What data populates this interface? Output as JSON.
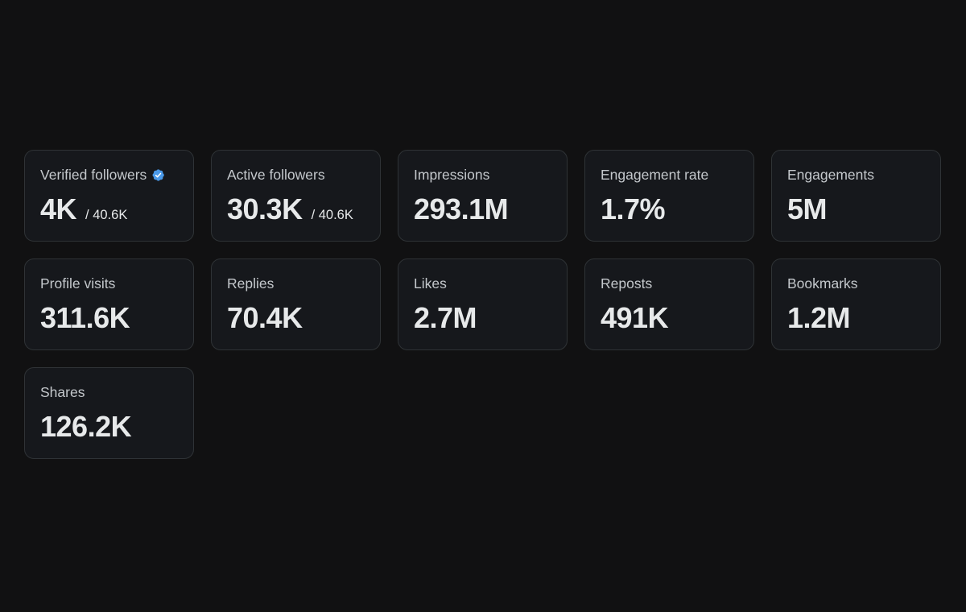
{
  "metrics": [
    {
      "label": "Verified followers",
      "value": "4K",
      "total": "/ 40.6K",
      "verified": true
    },
    {
      "label": "Active followers",
      "value": "30.3K",
      "total": "/ 40.6K"
    },
    {
      "label": "Impressions",
      "value": "293.1M"
    },
    {
      "label": "Engagement rate",
      "value": "1.7%"
    },
    {
      "label": "Engagements",
      "value": "5M"
    },
    {
      "label": "Profile visits",
      "value": "311.6K"
    },
    {
      "label": "Replies",
      "value": "70.4K"
    },
    {
      "label": "Likes",
      "value": "2.7M"
    },
    {
      "label": "Reposts",
      "value": "491K"
    },
    {
      "label": "Bookmarks",
      "value": "1.2M"
    },
    {
      "label": "Shares",
      "value": "126.2K"
    }
  ],
  "icons": {
    "verified": "verified-badge-icon"
  },
  "colors": {
    "background": "#111112",
    "card": "#16181c",
    "border": "#2f3336",
    "accent": "#4a99e9"
  }
}
